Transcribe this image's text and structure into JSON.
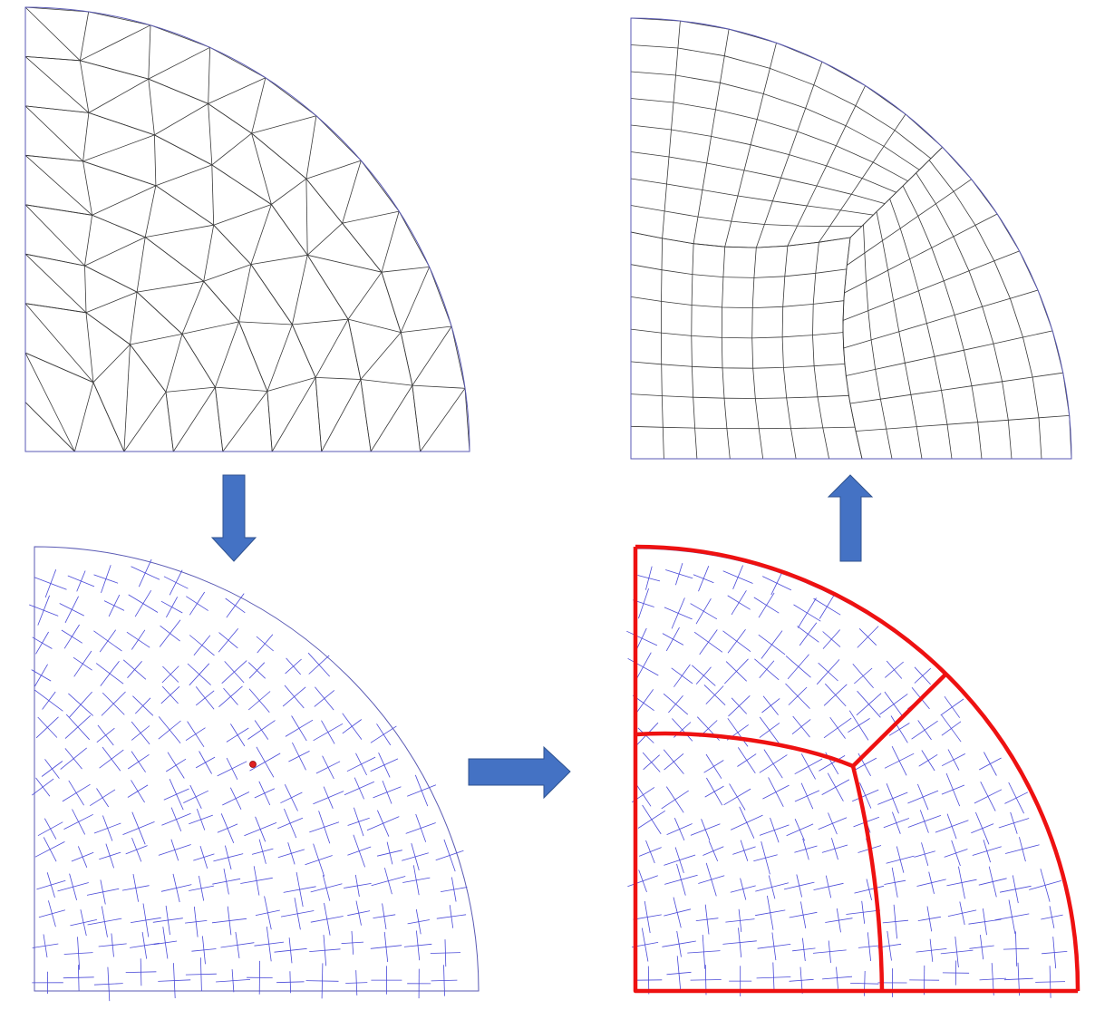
{
  "colors": {
    "background": "#ffffff",
    "triangle_mesh_edge": "#3a3a3a",
    "boundary": "#5a5ab4",
    "cross_field": "#4a4ad8",
    "singularity": "#e02020",
    "partition": "#ee1111",
    "arrow_fill": "#4472c4",
    "arrow_stroke": "#2f528f"
  },
  "panels": [
    {
      "name": "triangle-mesh",
      "shape": "quarter-disk"
    },
    {
      "name": "cross-field",
      "shape": "quarter-disk",
      "singularities": 1
    },
    {
      "name": "partitioned-cross-field",
      "shape": "quarter-disk",
      "patches": 3
    },
    {
      "name": "quad-mesh",
      "shape": "quarter-disk"
    }
  ],
  "arrows": [
    {
      "name": "arrow-down",
      "direction": "down",
      "from": "triangle-mesh",
      "to": "cross-field"
    },
    {
      "name": "arrow-right",
      "direction": "right",
      "from": "cross-field",
      "to": "partitioned-cross-field"
    },
    {
      "name": "arrow-up",
      "direction": "up",
      "from": "partitioned-cross-field",
      "to": "quad-mesh"
    }
  ],
  "icons": {
    "down": "arrow-down-icon",
    "right": "arrow-right-icon",
    "up": "arrow-up-icon"
  }
}
